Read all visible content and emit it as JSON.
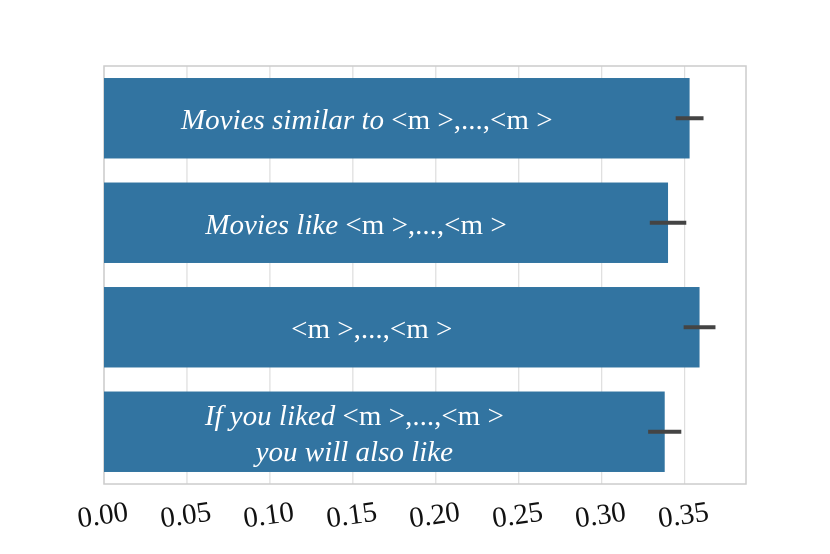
{
  "chart_data": {
    "type": "barh",
    "categories": [
      "Movies similar to <m >,...,<m >",
      "Movies like <m >,...,<m >",
      "<m >,...,<m >",
      "If you liked <m >,...,<m >\nyou will also like"
    ],
    "values": [
      0.353,
      0.34,
      0.359,
      0.338
    ],
    "errors": [
      0.0084,
      0.011,
      0.0096,
      0.01
    ],
    "color": "#3274a1",
    "xlim": [
      0,
      0.387
    ],
    "xticks": [
      {
        "value": 0,
        "label": "0.00"
      },
      0.05,
      {
        "value": 0.1,
        "label": "0.10"
      },
      0.15,
      {
        "value": 0.2,
        "label": "0.20"
      },
      0.25,
      {
        "value": 0.3,
        "label": "0.30"
      },
      0.35
    ],
    "grid": true
  }
}
